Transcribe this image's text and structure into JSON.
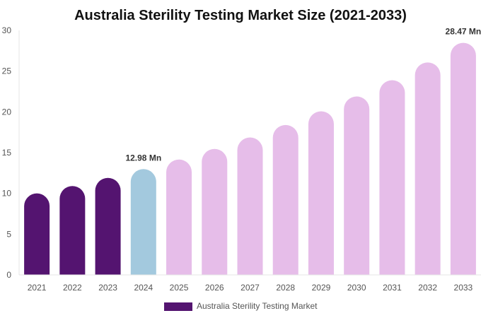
{
  "chart_data": {
    "type": "bar",
    "title": "Australia Sterility Testing Market Size (2021-2033)",
    "xlabel": "",
    "ylabel": "",
    "ylim": [
      0,
      30
    ],
    "yticks": [
      0,
      5,
      10,
      15,
      20,
      25,
      30
    ],
    "grid": false,
    "legend_position": "bottom",
    "categories": [
      "2021",
      "2022",
      "2023",
      "2024",
      "2025",
      "2026",
      "2027",
      "2028",
      "2029",
      "2030",
      "2031",
      "2032",
      "2033"
    ],
    "series": [
      {
        "name": "Australia Sterility Testing Market",
        "values": [
          10.0,
          10.9,
          11.9,
          12.98,
          14.16,
          15.45,
          16.86,
          18.39,
          20.07,
          21.89,
          23.89,
          26.07,
          28.47
        ]
      }
    ],
    "bar_colors": [
      "#541470",
      "#541470",
      "#541470",
      "#a3c9de",
      "#e6bde9",
      "#e6bde9",
      "#e6bde9",
      "#e6bde9",
      "#e6bde9",
      "#e6bde9",
      "#e6bde9",
      "#e6bde9",
      "#e6bde9"
    ],
    "legend_color": "#541470",
    "data_labels": [
      {
        "category": "2024",
        "text": "12.98 Mn"
      },
      {
        "category": "2033",
        "text": "28.47 Mn"
      }
    ]
  }
}
